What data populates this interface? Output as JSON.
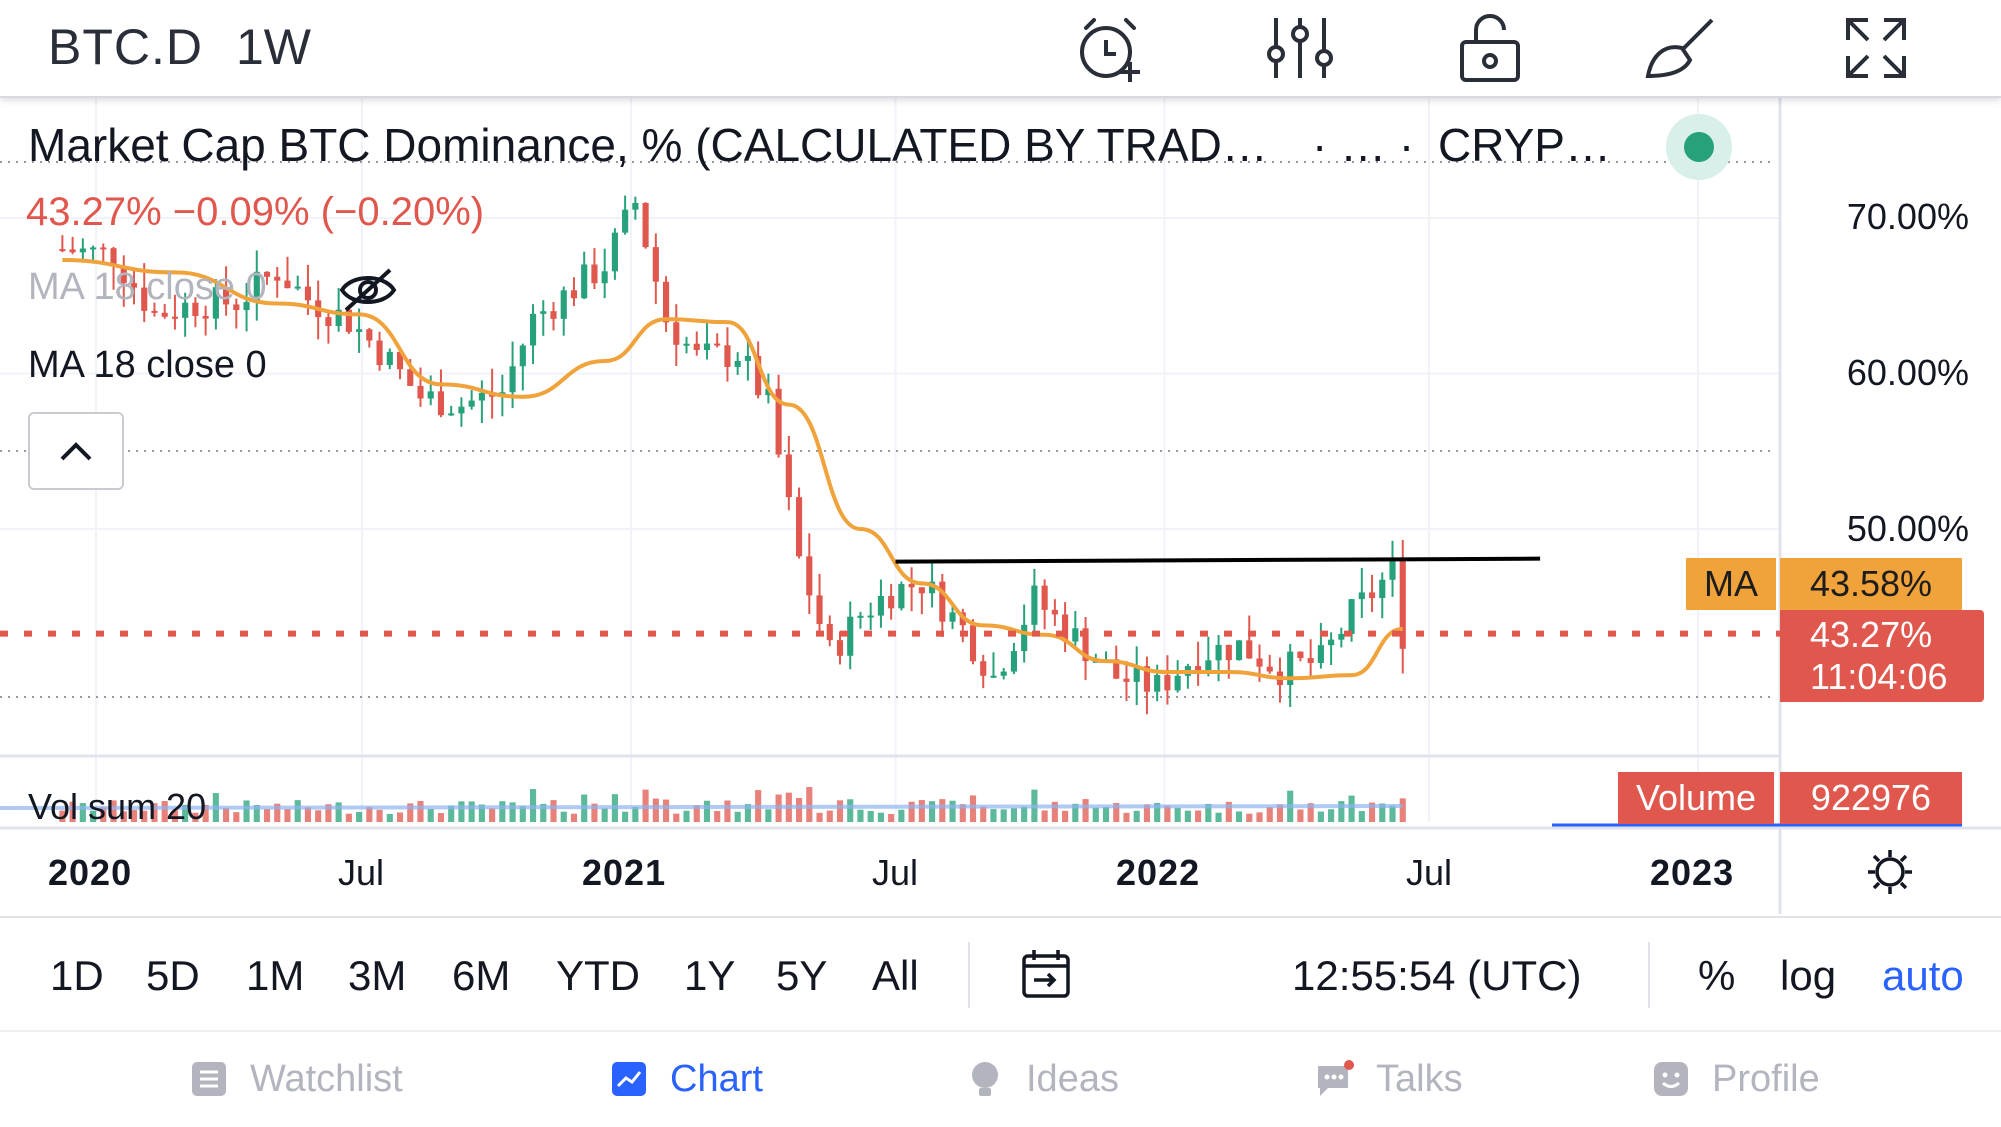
{
  "header": {
    "symbol": "BTC.D",
    "interval": "1W",
    "icons": [
      "alarm-add-icon",
      "indicators-icon",
      "unlock-icon",
      "drawing-brush-icon",
      "fullscreen-icon"
    ]
  },
  "legend": {
    "title": "Market Cap BTC Dominance, % (CALCULATED BY TRAD…",
    "separator": "· …  ·",
    "exchange": "CRYP…",
    "change": "43.27%  −0.09% (−0.20%)",
    "ma_hidden_label": "MA 18 close 0",
    "ma_label": "MA 18 close 0",
    "collapse_icon": "chevron-up-icon",
    "visibility_icon": "eye-off-icon"
  },
  "price_axis": {
    "labels": [
      "70.00%",
      "60.00%",
      "50.00%"
    ],
    "ma_tag": "MA",
    "ma_value": "43.58%",
    "last_value": "43.27%",
    "countdown": "11:04:06",
    "volume_tag": "Volume",
    "volume_value": "922976"
  },
  "time_axis": {
    "labels": [
      {
        "text": "2020",
        "bold": true
      },
      {
        "text": "Jul",
        "bold": false
      },
      {
        "text": "2021",
        "bold": true
      },
      {
        "text": "Jul",
        "bold": false
      },
      {
        "text": "2022",
        "bold": true
      },
      {
        "text": "Jul",
        "bold": false
      },
      {
        "text": "2023",
        "bold": true
      }
    ],
    "settings_icon": "gear-icon"
  },
  "volume_pane": {
    "label": "Vol sum 20"
  },
  "range_bar": {
    "ranges": [
      "1D",
      "5D",
      "1M",
      "3M",
      "6M",
      "YTD",
      "1Y",
      "5Y",
      "All"
    ],
    "goto_icon": "calendar-goto-icon",
    "clock": "12:55:54 (UTC)",
    "percent": "%",
    "log": "log",
    "auto": "auto"
  },
  "nav": {
    "items": [
      {
        "label": "Watchlist",
        "icon": "watchlist-icon",
        "active": false
      },
      {
        "label": "Chart",
        "icon": "chart-icon",
        "active": true
      },
      {
        "label": "Ideas",
        "icon": "ideas-icon",
        "active": false
      },
      {
        "label": "Talks",
        "icon": "talks-icon",
        "active": false
      },
      {
        "label": "Profile",
        "icon": "profile-icon",
        "active": false
      }
    ]
  },
  "colors": {
    "up": "#26a17b",
    "down": "#e0574d",
    "ma": "#f0a23b",
    "accent": "#2962ff",
    "resistance": "#000000"
  },
  "chart_data": {
    "type": "candlestick",
    "interval": "1W",
    "xlim": [
      "2020-01-01",
      "2023-01-01"
    ],
    "ylim": [
      38,
      75
    ],
    "y_ticks": [
      50,
      60,
      70
    ],
    "x_ticks": [
      "2020",
      "Jul",
      "2021",
      "Jul",
      "2022",
      "Jul",
      "2023"
    ],
    "grid": true,
    "last_price": 43.27,
    "ma_period": 18,
    "ma_last": 43.58,
    "resistance_level": 47.9,
    "resistance_start": "2021-07-01",
    "resistance_end": "2022-09-15",
    "close_series": {
      "name": "BTC.D",
      "points": [
        [
          "2019-12-09",
          68.0
        ],
        [
          "2020-01-13",
          67.6
        ],
        [
          "2020-02-10",
          63.8
        ],
        [
          "2020-03-09",
          64.5
        ],
        [
          "2020-04-06",
          64.6
        ],
        [
          "2020-05-04",
          66.6
        ],
        [
          "2020-05-25",
          64.8
        ],
        [
          "2020-06-22",
          63.4
        ],
        [
          "2020-07-13",
          61.5
        ],
        [
          "2020-08-10",
          58.5
        ],
        [
          "2020-09-07",
          58.0
        ],
        [
          "2020-10-05",
          58.8
        ],
        [
          "2020-10-26",
          63.5
        ],
        [
          "2020-11-23",
          65.5
        ],
        [
          "2020-12-14",
          67.0
        ],
        [
          "2021-01-04",
          71.0
        ],
        [
          "2021-01-25",
          63.5
        ],
        [
          "2021-02-15",
          61.0
        ],
        [
          "2021-03-15",
          61.3
        ],
        [
          "2021-04-05",
          58.0
        ],
        [
          "2021-04-26",
          48.0
        ],
        [
          "2021-05-17",
          42.0
        ],
        [
          "2021-06-07",
          44.5
        ],
        [
          "2021-06-28",
          46.0
        ],
        [
          "2021-07-19",
          46.6
        ],
        [
          "2021-08-16",
          43.6
        ],
        [
          "2021-09-06",
          40.5
        ],
        [
          "2021-10-04",
          45.5
        ],
        [
          "2021-11-01",
          43.0
        ],
        [
          "2021-11-29",
          40.5
        ],
        [
          "2021-12-27",
          39.8
        ],
        [
          "2022-01-24",
          42.0
        ],
        [
          "2022-02-21",
          42.5
        ],
        [
          "2022-03-21",
          41.0
        ],
        [
          "2022-04-18",
          41.5
        ],
        [
          "2022-05-09",
          44.5
        ],
        [
          "2022-06-06",
          47.3
        ],
        [
          "2022-06-13",
          43.3
        ]
      ]
    },
    "ma_series": {
      "name": "MA 18 close 0",
      "points": [
        [
          "2019-12-09",
          67.3
        ],
        [
          "2020-02-24",
          66.5
        ],
        [
          "2020-05-04",
          64.5
        ],
        [
          "2020-06-29",
          63.8
        ],
        [
          "2020-08-24",
          59.3
        ],
        [
          "2020-10-19",
          58.5
        ],
        [
          "2020-12-14",
          60.8
        ],
        [
          "2021-01-25",
          63.5
        ],
        [
          "2021-03-08",
          63.3
        ],
        [
          "2021-04-19",
          58.0
        ],
        [
          "2021-06-07",
          50.0
        ],
        [
          "2021-07-19",
          46.5
        ],
        [
          "2021-08-30",
          43.8
        ],
        [
          "2021-10-11",
          43.2
        ],
        [
          "2021-11-22",
          41.5
        ],
        [
          "2022-01-03",
          40.8
        ],
        [
          "2022-02-14",
          40.8
        ],
        [
          "2022-03-28",
          40.4
        ],
        [
          "2022-05-09",
          40.6
        ],
        [
          "2022-06-13",
          43.58
        ]
      ]
    },
    "volume_series": {
      "name": "Vol sum 20",
      "last": 922976
    }
  }
}
